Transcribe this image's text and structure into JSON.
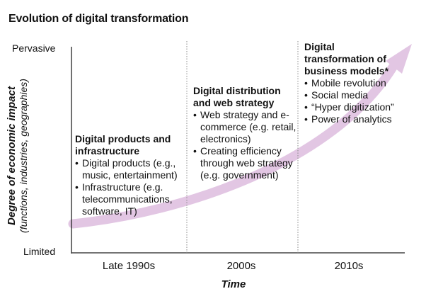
{
  "title": "Evolution of digital transformation",
  "y_axis": {
    "label": "Degree of economic impact",
    "sublabel": "(functions, industries, geographies)",
    "top_tick": "Pervasive",
    "bottom_tick": "Limited"
  },
  "x_axis": {
    "label": "Time",
    "ticks": [
      "Late 1990s",
      "2000s",
      "2010s"
    ]
  },
  "eras": [
    {
      "heading_line1": "Digital products and",
      "heading_line2": "infrastructure",
      "bullets": [
        "Digital products (e.g., music, entertainment)",
        "Infrastructure (e.g. telecommunications, software, IT)"
      ]
    },
    {
      "heading_line1": "Digital distribution",
      "heading_line2": "and web strategy",
      "bullets": [
        "Web strategy and e-commerce (e.g. retail, electronics)",
        "Creating efficiency through web strategy (e.g. government)"
      ]
    },
    {
      "heading_line1": "Digital",
      "heading_line2": "transformation of",
      "heading_line3": "business models*",
      "bullets": [
        "Mobile revolution",
        "Social media",
        "“Hyper digitization”",
        "Power of analytics"
      ]
    }
  ],
  "colors": {
    "arrow": "#e2c6e3",
    "axis": "#222222",
    "divider": "#888888"
  }
}
